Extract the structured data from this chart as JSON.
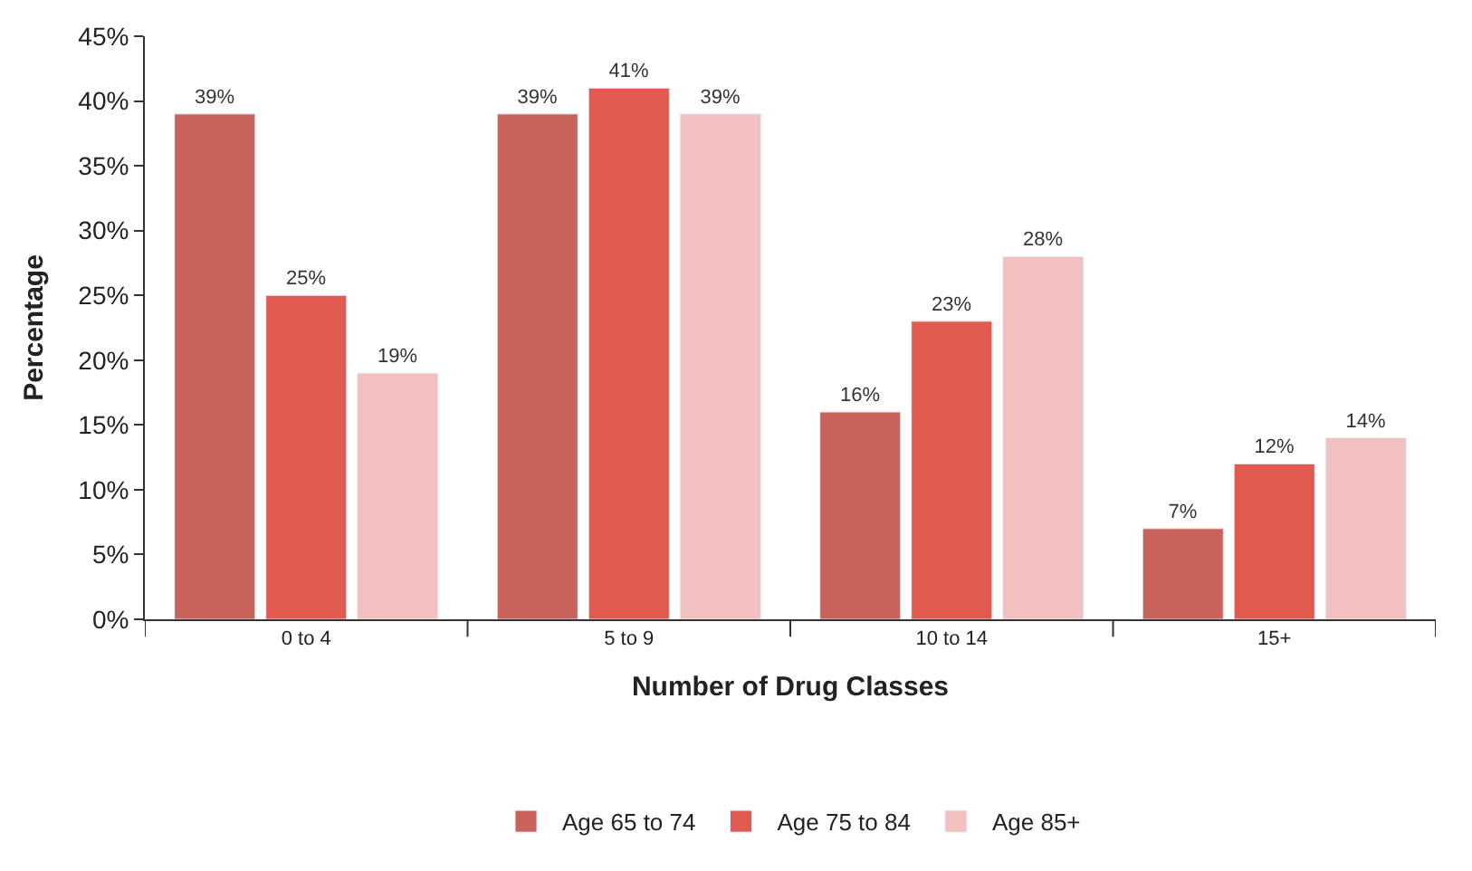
{
  "chart_data": {
    "type": "bar",
    "xlabel": "Number of Drug Classes",
    "ylabel": "Percentage",
    "categories": [
      "0 to 4",
      "5 to 9",
      "10 to 14",
      "15+"
    ],
    "series": [
      {
        "name": "Age 65 to 74",
        "color": "#c8625a",
        "values": [
          39,
          39,
          16,
          7
        ],
        "value_labels": [
          "39%",
          "39%",
          "16%",
          "7%"
        ]
      },
      {
        "name": "Age 75 to 84",
        "color": "#e05a50",
        "values": [
          25,
          41,
          23,
          12
        ],
        "value_labels": [
          "25%",
          "41%",
          "23%",
          "12%"
        ]
      },
      {
        "name": "Age 85+",
        "color": "#f2c0c0",
        "values": [
          19,
          39,
          28,
          14
        ],
        "value_labels": [
          "19%",
          "39%",
          "28%",
          "14%"
        ]
      }
    ],
    "ylim": [
      0,
      45
    ],
    "yticks": [
      {
        "value": 0,
        "label": "0%"
      },
      {
        "value": 5,
        "label": "5%"
      },
      {
        "value": 10,
        "label": "10%"
      },
      {
        "value": 15,
        "label": "15%"
      },
      {
        "value": 20,
        "label": "20%"
      },
      {
        "value": 25,
        "label": "25%"
      },
      {
        "value": 30,
        "label": "30%"
      },
      {
        "value": 35,
        "label": "35%"
      },
      {
        "value": 40,
        "label": "40%"
      },
      {
        "value": 45,
        "label": "45%"
      }
    ],
    "legend": "bottom"
  }
}
